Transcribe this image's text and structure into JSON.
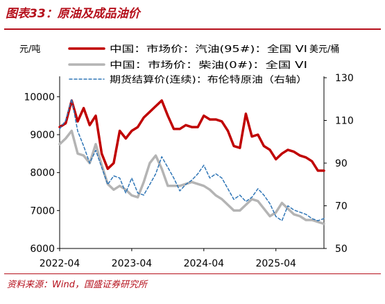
{
  "figure": {
    "title": "图表33：原油及成品油价",
    "source": "资料来源：Wind，国盛证券研究所"
  },
  "chart_data": {
    "type": "line",
    "left_unit": "元/吨",
    "right_unit": "美元/桶",
    "x_ticks": [
      "2022-04",
      "2023-04",
      "2024-04",
      "2025-04"
    ],
    "ylim": [
      6000,
      10500
    ],
    "y_ticks": [
      6000,
      7000,
      8000,
      9000,
      10000
    ],
    "ylim_right": [
      50,
      130
    ],
    "y_ticks_right": [
      50,
      70,
      90,
      110,
      130
    ],
    "legend_position": "top",
    "grid": false,
    "x_start": "2022-04",
    "x_end": "2025-12",
    "series": [
      {
        "name": "中国：市场价：汽油(95#)：全国 VI",
        "axis": "left",
        "color": "#c00000",
        "style": "solid-thick",
        "x": [
          "2022-04",
          "2022-05",
          "2022-06",
          "2022-07",
          "2022-08",
          "2022-09",
          "2022-10",
          "2022-11",
          "2022-12",
          "2023-01",
          "2023-02",
          "2023-03",
          "2023-04",
          "2023-05",
          "2023-06",
          "2023-07",
          "2023-08",
          "2023-09",
          "2023-10",
          "2023-11",
          "2023-12",
          "2024-01",
          "2024-02",
          "2024-03",
          "2024-04",
          "2024-05",
          "2024-06",
          "2024-07",
          "2024-08",
          "2024-09",
          "2024-10",
          "2024-11",
          "2024-12",
          "2025-01",
          "2025-02",
          "2025-03",
          "2025-04",
          "2025-05",
          "2025-06",
          "2025-07",
          "2025-08",
          "2025-09",
          "2025-10",
          "2025-11",
          "2025-12"
        ],
        "values": [
          9200,
          9300,
          9900,
          9350,
          9700,
          9250,
          9500,
          8500,
          8100,
          8250,
          9100,
          8900,
          9100,
          9200,
          9450,
          9600,
          9750,
          9900,
          9500,
          9150,
          9150,
          9250,
          9200,
          9200,
          9500,
          9400,
          9400,
          9350,
          9100,
          8700,
          8650,
          9550,
          8950,
          9000,
          8700,
          8600,
          8350,
          8500,
          8600,
          8550,
          8450,
          8400,
          8300,
          8050,
          8050
        ]
      },
      {
        "name": "中国：市场价：柴油(0#)：全国 VI",
        "axis": "left",
        "color": "#b4b4b4",
        "style": "solid-thick",
        "x": [
          "2022-04",
          "2022-05",
          "2022-06",
          "2022-07",
          "2022-08",
          "2022-09",
          "2022-10",
          "2022-11",
          "2022-12",
          "2023-01",
          "2023-02",
          "2023-03",
          "2023-04",
          "2023-05",
          "2023-06",
          "2023-07",
          "2023-08",
          "2023-09",
          "2023-10",
          "2023-11",
          "2023-12",
          "2024-01",
          "2024-02",
          "2024-03",
          "2024-04",
          "2024-05",
          "2024-06",
          "2024-07",
          "2024-08",
          "2024-09",
          "2024-10",
          "2024-11",
          "2024-12",
          "2025-01",
          "2025-02",
          "2025-03",
          "2025-04",
          "2025-05",
          "2025-06",
          "2025-07",
          "2025-08",
          "2025-09",
          "2025-10",
          "2025-11",
          "2025-12"
        ],
        "values": [
          8750,
          8900,
          9100,
          8500,
          8450,
          8250,
          8750,
          8200,
          7700,
          7550,
          7650,
          7550,
          7400,
          7350,
          7750,
          8250,
          8450,
          8100,
          7650,
          7650,
          7650,
          7700,
          7750,
          7700,
          7650,
          7550,
          7400,
          7300,
          7150,
          7000,
          7000,
          7150,
          7300,
          7250,
          7050,
          6850,
          6950,
          7200,
          7050,
          6900,
          6850,
          6750,
          6750,
          6700,
          6650
        ]
      },
      {
        "name": "期货结算价(连续)：布伦特原油（右轴）",
        "axis": "right",
        "color": "#2e75b6",
        "style": "dashed",
        "x": [
          "2022-04",
          "2022-05",
          "2022-06",
          "2022-07",
          "2022-08",
          "2022-09",
          "2022-10",
          "2022-11",
          "2022-12",
          "2023-01",
          "2023-02",
          "2023-03",
          "2023-04",
          "2023-05",
          "2023-06",
          "2023-07",
          "2023-08",
          "2023-09",
          "2023-10",
          "2023-11",
          "2023-12",
          "2024-01",
          "2024-02",
          "2024-03",
          "2024-04",
          "2024-05",
          "2024-06",
          "2024-07",
          "2024-08",
          "2024-09",
          "2024-10",
          "2024-11",
          "2024-12",
          "2025-01",
          "2025-02",
          "2025-03",
          "2025-04",
          "2025-05",
          "2025-06",
          "2025-07",
          "2025-08",
          "2025-09",
          "2025-10",
          "2025-11",
          "2025-12"
        ],
        "values": [
          106,
          110,
          120,
          105,
          98,
          90,
          96,
          88,
          80,
          84,
          83,
          76,
          83,
          76,
          75,
          80,
          85,
          93,
          88,
          83,
          77,
          80,
          82,
          85,
          89,
          83,
          85,
          83,
          78,
          73,
          75,
          72,
          74,
          78,
          75,
          71,
          65,
          63,
          70,
          68,
          67,
          66,
          64,
          63,
          64
        ]
      }
    ]
  }
}
